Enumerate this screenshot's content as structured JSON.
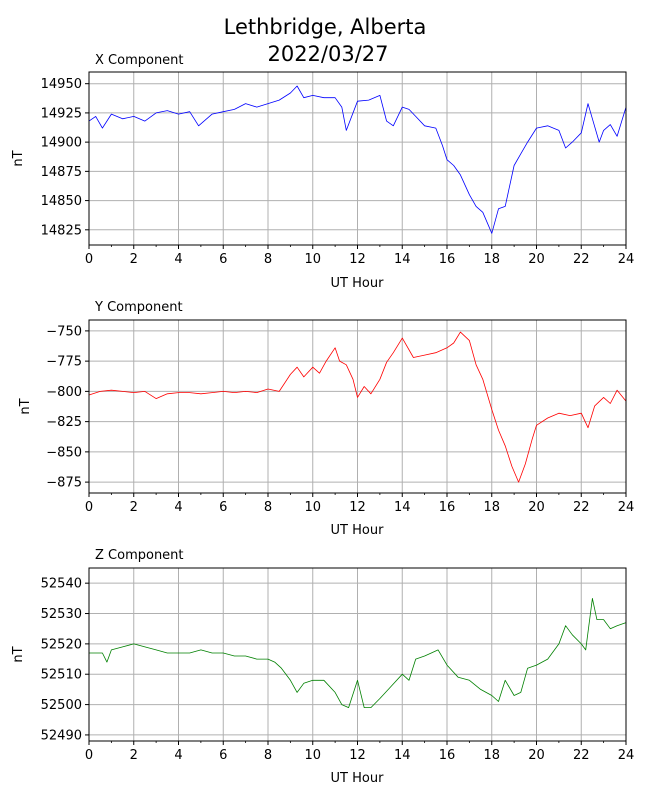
{
  "figure": {
    "title_line1": "Lethbridge, Alberta",
    "title_line2": "2022/03/27"
  },
  "chart_data": [
    {
      "type": "line",
      "title": "X Component",
      "xlabel": "UT Hour",
      "ylabel": "nT",
      "xlim": [
        0,
        24
      ],
      "ylim": [
        14812,
        14960
      ],
      "xticks": [
        "0",
        "2",
        "4",
        "6",
        "8",
        "10",
        "12",
        "14",
        "16",
        "18",
        "20",
        "22",
        "24"
      ],
      "yticks": [
        "14825",
        "14850",
        "14875",
        "14900",
        "14925",
        "14950"
      ],
      "grid": true,
      "color": "#0000ff",
      "x": [
        0,
        0.3,
        0.6,
        1,
        1.5,
        2,
        2.5,
        3,
        3.5,
        4,
        4.5,
        4.9,
        5.5,
        6,
        6.5,
        7,
        7.5,
        8,
        8.5,
        9,
        9.3,
        9.6,
        10,
        10.5,
        11,
        11.3,
        11.5,
        12,
        12.5,
        13,
        13.3,
        13.6,
        14,
        14.3,
        14.6,
        15,
        15.5,
        15.8,
        16,
        16.3,
        16.6,
        17,
        17.3,
        17.6,
        18,
        18.3,
        18.6,
        19,
        19.3,
        19.6,
        20,
        20.5,
        21,
        21.3,
        21.6,
        22,
        22.3,
        22.5,
        22.8,
        23,
        23.3,
        23.6,
        24
      ],
      "y": [
        14918,
        14922,
        14912,
        14924,
        14920,
        14922,
        14918,
        14925,
        14927,
        14924,
        14926,
        14914,
        14924,
        14926,
        14928,
        14933,
        14930,
        14933,
        14936,
        14942,
        14948,
        14938,
        14940,
        14938,
        14938,
        14930,
        14910,
        14935,
        14936,
        14940,
        14918,
        14914,
        14930,
        14928,
        14922,
        14914,
        14912,
        14897,
        14885,
        14880,
        14872,
        14855,
        14845,
        14840,
        14822,
        14843,
        14845,
        14880,
        14890,
        14900,
        14912,
        14914,
        14910,
        14895,
        14900,
        14908,
        14933,
        14920,
        14900,
        14910,
        14915,
        14905,
        14930
      ]
    },
    {
      "type": "line",
      "title": "Y Component",
      "xlabel": "UT Hour",
      "ylabel": "nT",
      "xlim": [
        0,
        24
      ],
      "ylim": [
        -884,
        -741
      ],
      "xticks": [
        "0",
        "2",
        "4",
        "6",
        "8",
        "10",
        "12",
        "14",
        "16",
        "18",
        "20",
        "22",
        "24"
      ],
      "yticks": [
        "−750",
        "−775",
        "−800",
        "−825",
        "−850",
        "−875"
      ],
      "grid": true,
      "color": "#ff0000",
      "x": [
        0,
        0.5,
        1,
        1.5,
        2,
        2.5,
        3,
        3.5,
        4,
        4.5,
        5,
        5.5,
        6,
        6.5,
        7,
        7.5,
        8,
        8.5,
        9,
        9.3,
        9.6,
        10,
        10.3,
        10.6,
        11,
        11.2,
        11.5,
        11.8,
        12,
        12.3,
        12.6,
        13,
        13.3,
        13.6,
        14,
        14.5,
        15,
        15.5,
        16,
        16.3,
        16.6,
        17,
        17.3,
        17.6,
        18,
        18.3,
        18.6,
        18.9,
        19.2,
        19.5,
        19.8,
        20,
        20.5,
        21,
        21.5,
        22,
        22.3,
        22.6,
        23,
        23.3,
        23.6,
        24
      ],
      "y": [
        -803,
        -800,
        -799,
        -800,
        -801,
        -800,
        -806,
        -802,
        -801,
        -801,
        -802,
        -801,
        -800,
        -801,
        -800,
        -801,
        -798,
        -800,
        -786,
        -780,
        -788,
        -780,
        -785,
        -775,
        -764,
        -775,
        -778,
        -790,
        -805,
        -796,
        -802,
        -790,
        -776,
        -768,
        -756,
        -772,
        -770,
        -768,
        -764,
        -760,
        -751,
        -758,
        -778,
        -790,
        -815,
        -832,
        -845,
        -862,
        -875,
        -860,
        -840,
        -828,
        -822,
        -818,
        -820,
        -818,
        -830,
        -812,
        -805,
        -810,
        -799,
        -808
      ]
    },
    {
      "type": "line",
      "title": "Z Component",
      "xlabel": "UT Hour",
      "ylabel": "nT",
      "xlim": [
        0,
        24
      ],
      "ylim": [
        52488,
        52545
      ],
      "xticks": [
        "0",
        "2",
        "4",
        "6",
        "8",
        "10",
        "12",
        "14",
        "16",
        "18",
        "20",
        "22",
        "24"
      ],
      "yticks": [
        "52490",
        "52500",
        "52510",
        "52520",
        "52530",
        "52540"
      ],
      "grid": true,
      "color": "#008000",
      "x": [
        0,
        0.3,
        0.6,
        0.8,
        1,
        1.5,
        2,
        2.5,
        3,
        3.5,
        4,
        4.5,
        5,
        5.5,
        6,
        6.5,
        7,
        7.5,
        8,
        8.3,
        8.6,
        9,
        9.3,
        9.6,
        10,
        10.5,
        11,
        11.3,
        11.6,
        12,
        12.3,
        12.6,
        13,
        13.5,
        14,
        14.3,
        14.6,
        15,
        15.3,
        15.6,
        16,
        16.5,
        17,
        17.5,
        18,
        18.3,
        18.6,
        19,
        19.3,
        19.6,
        20,
        20.5,
        21,
        21.3,
        21.6,
        22,
        22.2,
        22.5,
        22.7,
        23,
        23.3,
        23.6,
        24
      ],
      "y": [
        52517,
        52517,
        52517,
        52514,
        52518,
        52519,
        52520,
        52519,
        52518,
        52517,
        52517,
        52517,
        52518,
        52517,
        52517,
        52516,
        52516,
        52515,
        52515,
        52514,
        52512,
        52508,
        52504,
        52507,
        52508,
        52508,
        52504,
        52500,
        52499,
        52508,
        52499,
        52499,
        52502,
        52506,
        52510,
        52508,
        52515,
        52516,
        52517,
        52518,
        52513,
        52509,
        52508,
        52505,
        52503,
        52501,
        52508,
        52503,
        52504,
        52512,
        52513,
        52515,
        52520,
        52526,
        52523,
        52520,
        52518,
        52535,
        52528,
        52528,
        52525,
        52526,
        52527
      ]
    }
  ]
}
